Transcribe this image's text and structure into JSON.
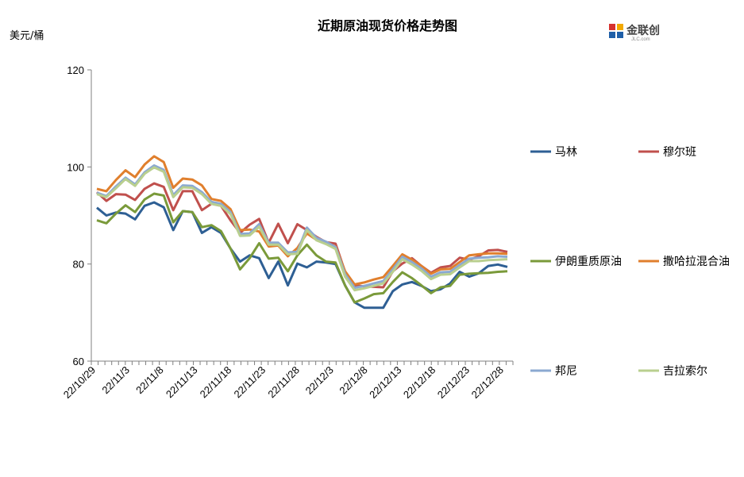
{
  "chart_data": {
    "type": "line",
    "title": "近期原油现货价格走势图",
    "ylabel": "美元/桶",
    "xlabel": "",
    "ylim": [
      60,
      120
    ],
    "yticks": [
      60,
      80,
      100,
      120
    ],
    "x": [
      "22/10/29",
      "22/10/31",
      "22/11/1",
      "22/11/2",
      "22/11/3",
      "22/11/4",
      "22/11/7",
      "22/11/8",
      "22/11/9",
      "22/11/10",
      "22/11/11",
      "22/11/14",
      "22/11/15",
      "22/11/16",
      "22/11/17",
      "22/11/18",
      "22/11/21",
      "22/11/22",
      "22/11/23",
      "22/11/24",
      "22/11/25",
      "22/11/28",
      "22/11/29",
      "22/11/30",
      "22/12/1",
      "22/12/2",
      "22/12/5",
      "22/12/6",
      "22/12/7",
      "22/12/8",
      "22/12/9",
      "22/12/12",
      "22/12/13",
      "22/12/14",
      "22/12/15",
      "22/12/16",
      "22/12/19",
      "22/12/20",
      "22/12/21",
      "22/12/22",
      "22/12/23",
      "22/12/26",
      "22/12/27",
      "22/12/28"
    ],
    "xtick_labels": [
      "22/10/29",
      "22/11/3",
      "22/11/8",
      "22/11/13",
      "22/11/18",
      "22/11/23",
      "22/11/28",
      "22/12/3",
      "22/12/8",
      "22/12/13",
      "22/12/18",
      "22/12/23",
      "22/12/28"
    ],
    "grid": false,
    "legend_position": "right",
    "series": [
      {
        "name": "马林",
        "color": "#2e5f94",
        "values": [
          91.6,
          90.0,
          90.6,
          90.4,
          89.2,
          92.0,
          92.7,
          91.7,
          87.0,
          90.9,
          90.7,
          86.4,
          87.6,
          86.4,
          83.2,
          80.5,
          81.8,
          81.2,
          77.1,
          80.5,
          75.6,
          80.1,
          79.3,
          80.5,
          80.3,
          80.0,
          75.6,
          72.1,
          71.0,
          71.0,
          71.0,
          74.4,
          75.8,
          76.3,
          75.5,
          74.4,
          74.8,
          76.0,
          78.4,
          77.4,
          78.1,
          79.6,
          79.9,
          79.4
        ]
      },
      {
        "name": "穆尔班",
        "color": "#c0504d",
        "values": [
          94.8,
          93.0,
          94.4,
          94.3,
          93.2,
          95.5,
          96.6,
          95.9,
          91.1,
          95.0,
          95.0,
          91.1,
          92.4,
          92.0,
          89.0,
          86.4,
          88.1,
          89.3,
          84.4,
          88.3,
          84.3,
          88.2,
          87.0,
          85.6,
          84.5,
          84.2,
          78.4,
          75.6,
          75.4,
          75.3,
          75.2,
          78.5,
          80.1,
          81.2,
          79.6,
          78.2,
          79.3,
          79.6,
          81.3,
          80.9,
          81.6,
          82.8,
          82.9,
          82.5
        ]
      },
      {
        "name": "伊朗重质原油",
        "color": "#7a9a3a",
        "values": [
          89.0,
          88.4,
          90.4,
          92.1,
          90.7,
          93.3,
          94.5,
          94.1,
          88.6,
          90.9,
          90.7,
          87.6,
          88.0,
          86.8,
          83.2,
          78.9,
          81.2,
          84.3,
          81.1,
          81.3,
          78.5,
          81.8,
          84.0,
          81.8,
          80.5,
          80.3,
          75.6,
          72.1,
          72.9,
          73.8,
          74.0,
          76.3,
          78.3,
          77.1,
          75.6,
          74.0,
          75.2,
          75.5,
          77.8,
          78.0,
          78.1,
          78.2,
          78.4,
          78.5
        ]
      },
      {
        "name": "撒哈拉混合油",
        "color": "#e07f2d",
        "values": [
          95.5,
          95.0,
          97.3,
          99.3,
          97.9,
          100.5,
          102.2,
          101.0,
          95.7,
          97.6,
          97.4,
          96.2,
          93.4,
          93.0,
          91.3,
          87.0,
          87.1,
          86.7,
          83.6,
          83.8,
          81.6,
          83.3,
          86.3,
          85.0,
          84.2,
          83.6,
          78.5,
          75.8,
          76.2,
          76.8,
          77.3,
          79.6,
          82.0,
          80.9,
          79.6,
          78.0,
          78.9,
          79.0,
          80.4,
          81.8,
          82.0,
          82.2,
          82.2,
          82.1
        ]
      },
      {
        "name": "邦尼",
        "color": "#8ba9d1",
        "values": [
          94.7,
          94.0,
          96.0,
          97.8,
          96.4,
          98.9,
          100.3,
          99.4,
          94.2,
          96.2,
          96.1,
          94.8,
          92.8,
          92.4,
          90.7,
          86.2,
          86.3,
          88.2,
          84.4,
          84.4,
          82.4,
          82.5,
          87.5,
          85.4,
          84.6,
          83.5,
          77.9,
          75.1,
          75.5,
          76.0,
          76.5,
          78.9,
          81.5,
          80.4,
          79.1,
          77.4,
          78.3,
          78.4,
          79.8,
          81.1,
          81.3,
          81.4,
          81.6,
          81.5
        ]
      },
      {
        "name": "吉拉索尔",
        "color": "#b9cf8f",
        "values": [
          94.4,
          93.8,
          95.6,
          97.5,
          96.1,
          98.6,
          99.9,
          99.0,
          93.8,
          95.8,
          95.7,
          94.4,
          92.4,
          92.0,
          90.3,
          85.8,
          85.9,
          87.7,
          84.0,
          84.0,
          82.0,
          82.1,
          87.0,
          84.9,
          84.1,
          83.1,
          77.4,
          74.6,
          75.0,
          75.5,
          76.0,
          78.4,
          81.0,
          79.9,
          78.6,
          76.9,
          77.8,
          77.9,
          79.3,
          80.6,
          80.6,
          80.8,
          80.9,
          81.0
        ]
      }
    ]
  },
  "logo": {
    "name": "金联创",
    "sub": "JLC.com"
  }
}
